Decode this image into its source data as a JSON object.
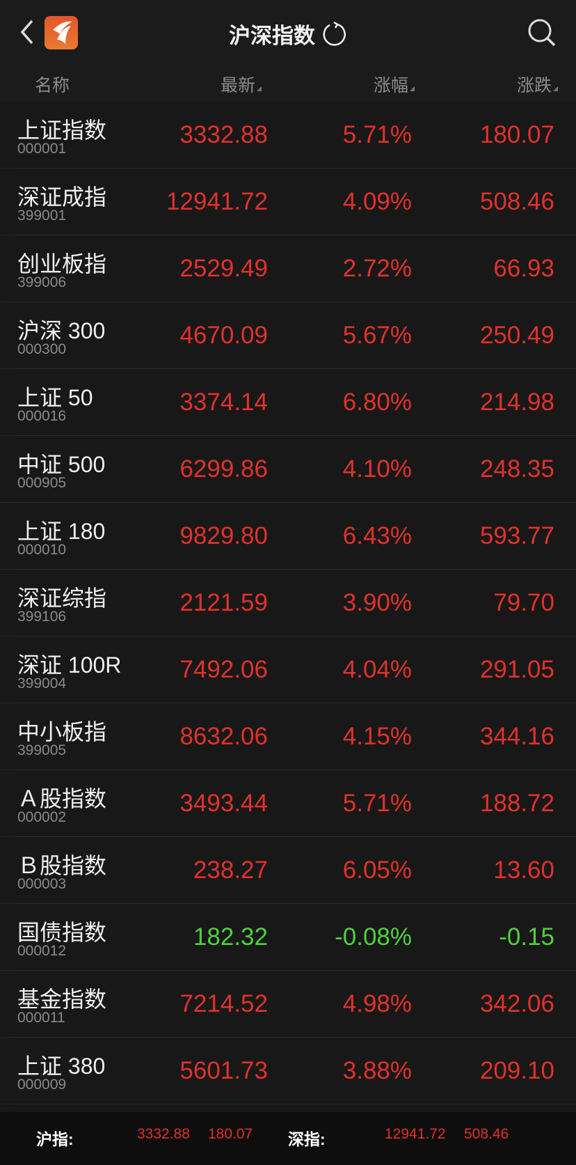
{
  "header": {
    "title": "沪深指数",
    "back_icon": "chevron-left-icon",
    "refresh_icon": "refresh-icon",
    "search_icon": "search-icon"
  },
  "columns": {
    "name": "名称",
    "latest": "最新",
    "pct": "涨幅",
    "change": "涨跌"
  },
  "colors": {
    "up": "#e2312a",
    "down": "#4fd13c",
    "logo": "#e2552a"
  },
  "rows": [
    {
      "name": "上证指数",
      "code": "000001",
      "latest": "3332.88",
      "pct": "5.71%",
      "change": "180.07",
      "dir": "up"
    },
    {
      "name": "深证成指",
      "code": "399001",
      "latest": "12941.72",
      "pct": "4.09%",
      "change": "508.46",
      "dir": "up"
    },
    {
      "name": "创业板指",
      "code": "399006",
      "latest": "2529.49",
      "pct": "2.72%",
      "change": "66.93",
      "dir": "up"
    },
    {
      "name": "沪深 300",
      "code": "000300",
      "latest": "4670.09",
      "pct": "5.67%",
      "change": "250.49",
      "dir": "up"
    },
    {
      "name": "上证 50",
      "code": "000016",
      "latest": "3374.14",
      "pct": "6.80%",
      "change": "214.98",
      "dir": "up"
    },
    {
      "name": "中证 500",
      "code": "000905",
      "latest": "6299.86",
      "pct": "4.10%",
      "change": "248.35",
      "dir": "up"
    },
    {
      "name": "上证 180",
      "code": "000010",
      "latest": "9829.80",
      "pct": "6.43%",
      "change": "593.77",
      "dir": "up"
    },
    {
      "name": "深证综指",
      "code": "399106",
      "latest": "2121.59",
      "pct": "3.90%",
      "change": "79.70",
      "dir": "up"
    },
    {
      "name": "深证 100R",
      "code": "399004",
      "latest": "7492.06",
      "pct": "4.04%",
      "change": "291.05",
      "dir": "up"
    },
    {
      "name": "中小板指",
      "code": "399005",
      "latest": "8632.06",
      "pct": "4.15%",
      "change": "344.16",
      "dir": "up"
    },
    {
      "name": "Ａ股指数",
      "code": "000002",
      "latest": "3493.44",
      "pct": "5.71%",
      "change": "188.72",
      "dir": "up"
    },
    {
      "name": "Ｂ股指数",
      "code": "000003",
      "latest": "238.27",
      "pct": "6.05%",
      "change": "13.60",
      "dir": "up"
    },
    {
      "name": "国债指数",
      "code": "000012",
      "latest": "182.32",
      "pct": "-0.08%",
      "change": "-0.15",
      "dir": "dn"
    },
    {
      "name": "基金指数",
      "code": "000011",
      "latest": "7214.52",
      "pct": "4.98%",
      "change": "342.06",
      "dir": "up"
    },
    {
      "name": "上证 380",
      "code": "000009",
      "latest": "5601.73",
      "pct": "3.88%",
      "change": "209.10",
      "dir": "up"
    }
  ],
  "footer": {
    "sh_label": "沪指:",
    "sh_value": "3332.88",
    "sh_change": "180.07",
    "sz_label": "深指:",
    "sz_value": "12941.72",
    "sz_change": "508.46"
  }
}
